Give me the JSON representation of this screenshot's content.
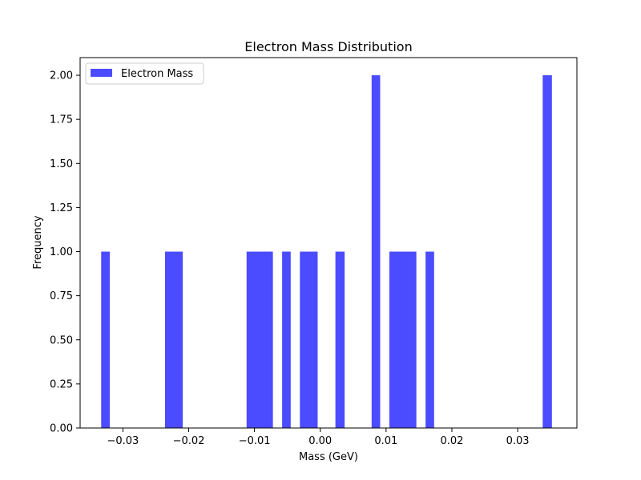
{
  "chart_data": {
    "type": "bar",
    "title": "Electron Mass Distribution",
    "xlabel": "Mass (GeV)",
    "ylabel": "Frequency",
    "xlim": [
      -0.0365,
      0.039
    ],
    "ylim": [
      0,
      2.1
    ],
    "xticks": [
      -0.03,
      -0.02,
      -0.01,
      0.0,
      0.01,
      0.02,
      0.03
    ],
    "xtick_labels": [
      "−0.03",
      "−0.02",
      "−0.01",
      "0.00",
      "0.01",
      "0.02",
      "0.03"
    ],
    "yticks": [
      0,
      0.25,
      0.5,
      0.75,
      1.0,
      1.25,
      1.5,
      1.75,
      2.0
    ],
    "ytick_labels": [
      "0.00",
      "0.25",
      "0.50",
      "0.75",
      "1.00",
      "1.25",
      "1.50",
      "1.75",
      "2.00"
    ],
    "grid": false,
    "legend_position": "top-left",
    "series": [
      {
        "name": "Electron Mass",
        "color": "#4b4bff",
        "bins": [
          {
            "x0": -0.0333,
            "x1": -0.032,
            "count": 1
          },
          {
            "x0": -0.0236,
            "x1": -0.0209,
            "count": 1
          },
          {
            "x0": -0.0112,
            "x1": -0.0072,
            "count": 1
          },
          {
            "x0": -0.0058,
            "x1": -0.0045,
            "count": 1
          },
          {
            "x0": -0.0031,
            "x1": -0.0004,
            "count": 1
          },
          {
            "x0": 0.0023,
            "x1": 0.0037,
            "count": 1
          },
          {
            "x0": 0.0078,
            "x1": 0.0091,
            "count": 2
          },
          {
            "x0": 0.0105,
            "x1": 0.0146,
            "count": 1
          },
          {
            "x0": 0.016,
            "x1": 0.0173,
            "count": 1
          },
          {
            "x0": 0.0338,
            "x1": 0.0352,
            "count": 2
          }
        ]
      }
    ]
  }
}
